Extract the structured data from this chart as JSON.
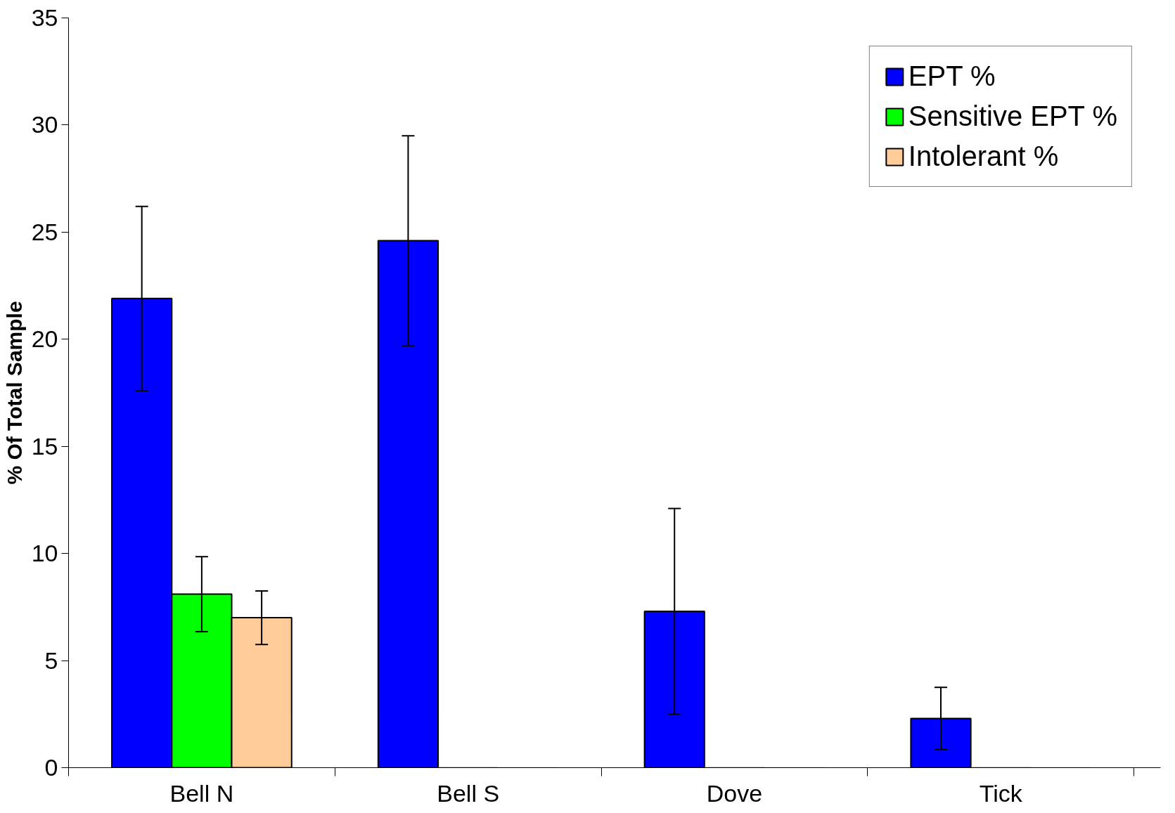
{
  "chart_data": {
    "type": "bar",
    "ylabel": "% Of Total Sample",
    "categories": [
      "Bell N",
      "Bell S",
      "Dove",
      "Tick"
    ],
    "series": [
      {
        "name": "EPT %",
        "color": "#0000ff",
        "values": [
          21.9,
          24.6,
          7.3,
          2.3
        ],
        "errors": [
          4.3,
          4.9,
          4.8,
          1.45
        ]
      },
      {
        "name": "Sensitive EPT %",
        "color": "#00ff00",
        "values": [
          8.1,
          0,
          0,
          0
        ],
        "errors": [
          1.75,
          null,
          null,
          null
        ]
      },
      {
        "name": "Intolerant %",
        "color": "#ffcc99",
        "values": [
          7.0,
          0,
          0,
          0
        ],
        "errors": [
          1.25,
          null,
          null,
          null
        ]
      }
    ],
    "ylim": [
      0,
      35
    ],
    "yticks": [
      0,
      5,
      10,
      15,
      20,
      25,
      30,
      35
    ],
    "grid": false,
    "legend": "top right"
  }
}
